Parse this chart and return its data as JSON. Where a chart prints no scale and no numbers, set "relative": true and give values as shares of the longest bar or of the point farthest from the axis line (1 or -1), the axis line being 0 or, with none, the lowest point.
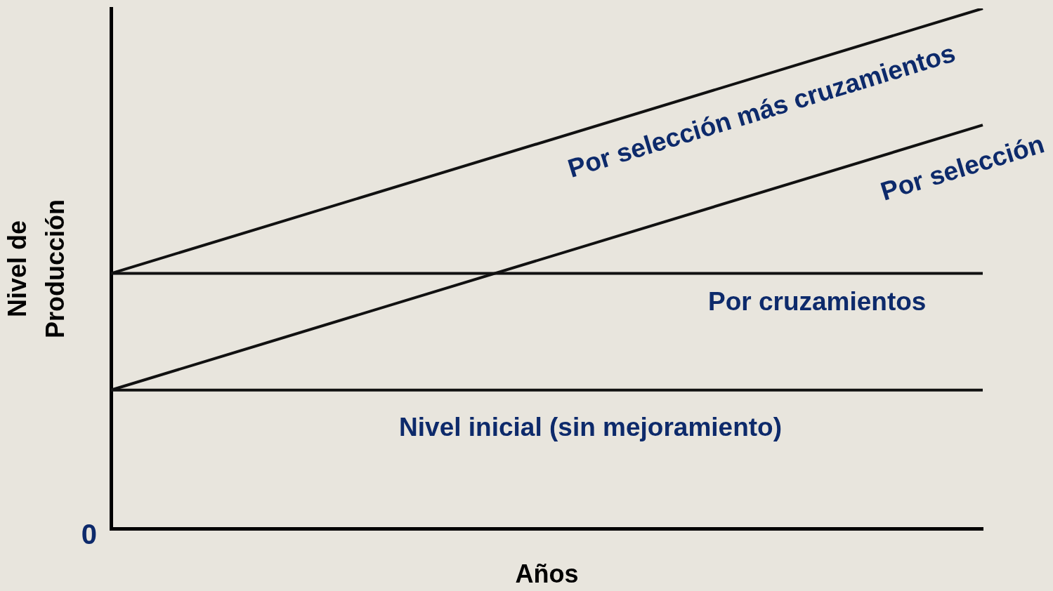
{
  "chart_data": {
    "type": "line",
    "relative": true,
    "xlabel": "Años",
    "ylabel": "Nivel de Producción",
    "categories": [
      null,
      null
    ],
    "marker": "none",
    "series": [
      {
        "name": "Nivel inicial (sin mejoramiento)",
        "color": "#111111",
        "values": [
          0.267,
          0.267
        ]
      },
      {
        "name": "Por cruzamientos",
        "color": "#111111",
        "values": [
          0.491,
          0.491
        ]
      },
      {
        "name": "Por selección",
        "color": "#111111",
        "values": [
          0.267,
          0.776
        ]
      },
      {
        "name": "Por selección más cruzamientos",
        "color": "#111111",
        "values": [
          0.491,
          1
        ]
      }
    ],
    "annotations": [
      "0"
    ]
  }
}
